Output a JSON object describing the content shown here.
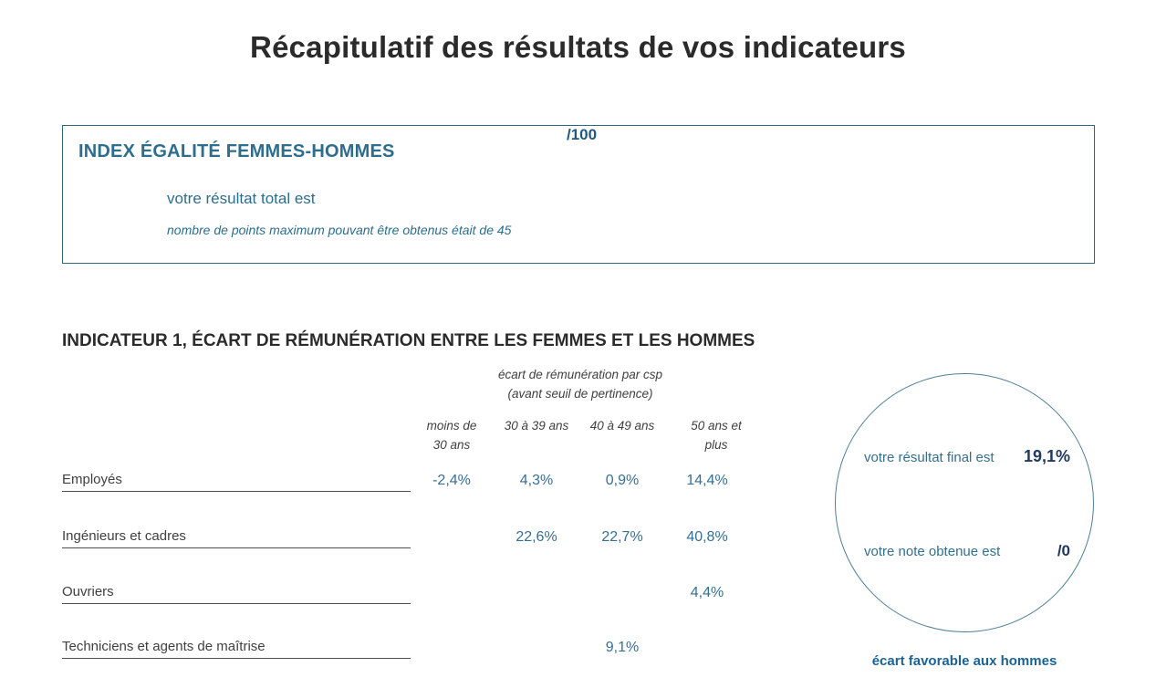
{
  "page": {
    "title": "Récapitulatif des résultats de vos indicateurs"
  },
  "summary_box": {
    "heading": "INDEX ÉGALITÉ FEMMES-HOMMES",
    "result_label": "votre résultat total est",
    "result_value": "/100",
    "note": "nombre de points maximum pouvant être obtenus était de 45"
  },
  "indicator1": {
    "heading": "INDICATEUR 1, ÉCART DE RÉMUNÉRATION ENTRE LES FEMMES ET LES HOMMES",
    "table": {
      "title_line1": "écart de rémunération par csp",
      "title_line2": "(avant seuil de pertinence)",
      "columns": [
        "moins de 30 ans",
        "30 à 39 ans",
        "40 à 49 ans",
        "50 ans et plus"
      ],
      "rows": [
        {
          "label": "Employés",
          "values": [
            "-2,4%",
            "4,3%",
            "0,9%",
            "14,4%"
          ]
        },
        {
          "label": "Ingénieurs et cadres",
          "values": [
            "",
            "22,6%",
            "22,7%",
            "40,8%"
          ]
        },
        {
          "label": "Ouvriers",
          "values": [
            "",
            "",
            "",
            "4,4%"
          ]
        },
        {
          "label": "Techniciens et agents de maîtrise",
          "values": [
            "",
            "",
            "9,1%",
            ""
          ]
        }
      ]
    },
    "result_circle": {
      "final_label": "votre résultat final est",
      "final_value": "19,1%",
      "note_label": "votre note obtenue est",
      "note_value": "/0",
      "caption": "écart favorable aux hommes"
    }
  },
  "colors": {
    "teal_heading": "#2d6d8d",
    "box_border": "#33677d",
    "steel_blue_values": "#366f94",
    "dark_navy_values": "#21395c",
    "caption_blue": "#1b6395",
    "dark_text": "#2b2b2b"
  }
}
